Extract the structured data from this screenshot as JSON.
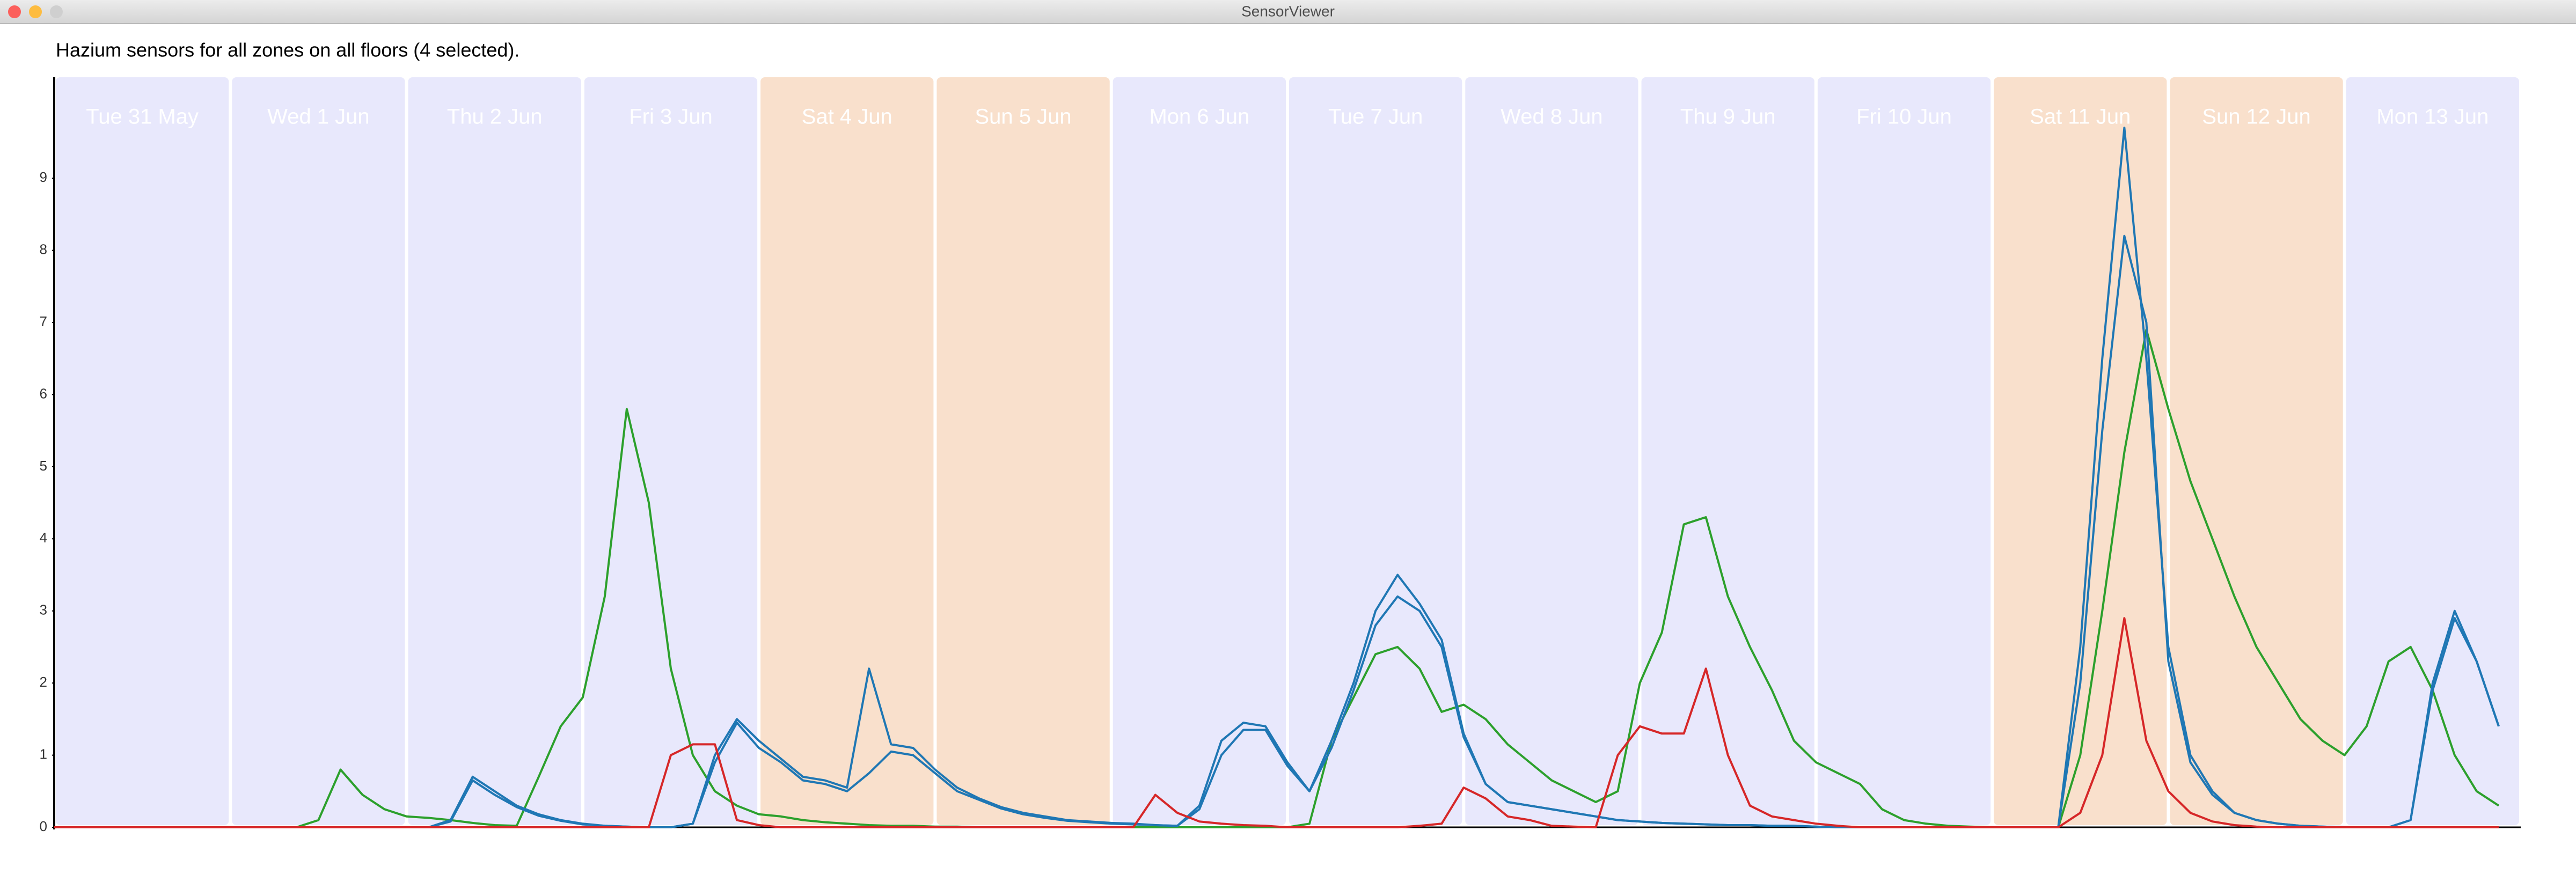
{
  "window": {
    "title": "SensorViewer"
  },
  "chart_data": {
    "type": "line",
    "title": "Hazium sensors for all zones on all floors (4 selected).",
    "categories": [
      "Tue 31 May",
      "Wed 1 Jun",
      "Thu 2 Jun",
      "Fri 3 Jun",
      "Sat 4 Jun",
      "Sun 5 Jun",
      "Mon 6 Jun",
      "Tue 7 Jun",
      "Wed 8 Jun",
      "Thu 9 Jun",
      "Fri 10 Jun",
      "Sat 11 Jun",
      "Sun 12 Jun",
      "Mon 13 Jun"
    ],
    "band_colors": [
      "#e8e8fc",
      "#e8e8fc",
      "#e8e8fc",
      "#e8e8fc",
      "#f9e0cc",
      "#f9e0cc",
      "#e8e8fc",
      "#e8e8fc",
      "#e8e8fc",
      "#e8e8fc",
      "#e8e8fc",
      "#f9e0cc",
      "#f9e0cc",
      "#e8e8fc"
    ],
    "ylim": [
      0,
      10.4
    ],
    "yticks": [
      0,
      1,
      2,
      3,
      4,
      5,
      6,
      7,
      8,
      9
    ],
    "series": [
      {
        "color": "#2ca02c",
        "values": [
          [
            0,
            0,
            0,
            0,
            0,
            0,
            0,
            0
          ],
          [
            0,
            0,
            0,
            0,
            0.1,
            0.8,
            0.45,
            0.25
          ],
          [
            0.15,
            0.13,
            0.1,
            0.06,
            0.03,
            0.02,
            0.7,
            1.4
          ],
          [
            1.8,
            3.2,
            5.8,
            4.5,
            2.2,
            1.0,
            0.5,
            0.3
          ],
          [
            0.18,
            0.15,
            0.1,
            0.07,
            0.05,
            0.03,
            0.02,
            0.02
          ],
          [
            0.01,
            0.01,
            0,
            0,
            0,
            0,
            0,
            0
          ],
          [
            0,
            0,
            0,
            0,
            0,
            0,
            0,
            0
          ],
          [
            0,
            0.05,
            1.2,
            1.8,
            2.4,
            2.5,
            2.2,
            1.6
          ],
          [
            1.7,
            1.5,
            1.15,
            0.9,
            0.65,
            0.5,
            0.35,
            0.5
          ],
          [
            2.0,
            2.7,
            4.2,
            4.3,
            3.2,
            2.5,
            1.9,
            1.2
          ],
          [
            0.9,
            0.75,
            0.6,
            0.25,
            0.1,
            0.05,
            0.02,
            0.01
          ],
          [
            0,
            0,
            0,
            0,
            1.0,
            3.0,
            5.2,
            6.9
          ],
          [
            5.8,
            4.8,
            4.0,
            3.2,
            2.5,
            2.0,
            1.5,
            1.2
          ],
          [
            1.0,
            1.4,
            2.3,
            2.5,
            1.9,
            1.0,
            0.5,
            0.3
          ]
        ]
      },
      {
        "color": "#1f77b4",
        "values": [
          [
            0,
            0,
            0,
            0,
            0,
            0,
            0,
            0
          ],
          [
            0,
            0,
            0,
            0,
            0,
            0,
            0,
            0
          ],
          [
            0,
            0,
            0.1,
            0.7,
            0.5,
            0.3,
            0.18,
            0.1
          ],
          [
            0.05,
            0.02,
            0.01,
            0,
            0,
            0.05,
            1.0,
            1.5
          ],
          [
            1.2,
            0.95,
            0.7,
            0.65,
            0.55,
            2.2,
            1.15,
            1.1
          ],
          [
            0.8,
            0.55,
            0.4,
            0.28,
            0.2,
            0.15,
            0.1,
            0.08
          ],
          [
            0.06,
            0.05,
            0.03,
            0.02,
            0.3,
            1.2,
            1.45,
            1.4
          ],
          [
            0.9,
            0.5,
            1.2,
            2.0,
            3.0,
            3.5,
            3.1,
            2.6
          ],
          [
            1.3,
            0.6,
            0.35,
            0.3,
            0.25,
            0.2,
            0.15,
            0.1
          ],
          [
            0.08,
            0.06,
            0.05,
            0.04,
            0.03,
            0.03,
            0.02,
            0.02
          ],
          [
            0.01,
            0,
            0,
            0,
            0,
            0,
            0,
            0
          ],
          [
            0,
            0,
            0,
            0,
            2.5,
            6.5,
            9.7,
            6.5
          ],
          [
            2.5,
            1.0,
            0.5,
            0.2,
            0.1,
            0.05,
            0.02,
            0.01
          ],
          [
            0,
            0,
            0,
            0.1,
            2.0,
            3.0,
            2.3,
            1.4
          ]
        ]
      },
      {
        "color": "#1f77b4",
        "values": [
          [
            0,
            0,
            0,
            0,
            0,
            0,
            0,
            0
          ],
          [
            0,
            0,
            0,
            0,
            0,
            0,
            0,
            0
          ],
          [
            0,
            0,
            0.08,
            0.65,
            0.45,
            0.28,
            0.16,
            0.09
          ],
          [
            0.04,
            0.02,
            0.01,
            0,
            0,
            0.05,
            0.9,
            1.45
          ],
          [
            1.1,
            0.9,
            0.65,
            0.6,
            0.5,
            0.75,
            1.05,
            1.0
          ],
          [
            0.75,
            0.5,
            0.38,
            0.26,
            0.18,
            0.13,
            0.09,
            0.07
          ],
          [
            0.05,
            0.04,
            0.03,
            0.02,
            0.25,
            1.0,
            1.35,
            1.35
          ],
          [
            0.85,
            0.5,
            1.1,
            1.9,
            2.8,
            3.2,
            3.0,
            2.5
          ],
          [
            1.25,
            0.6,
            0.35,
            0.3,
            0.25,
            0.2,
            0.15,
            0.1
          ],
          [
            0.08,
            0.06,
            0.05,
            0.04,
            0.03,
            0.03,
            0.02,
            0.02
          ],
          [
            0.01,
            0,
            0,
            0,
            0,
            0,
            0,
            0
          ],
          [
            0,
            0,
            0,
            0,
            2.0,
            5.5,
            8.2,
            7.0
          ],
          [
            2.3,
            0.9,
            0.45,
            0.2,
            0.1,
            0.05,
            0.02,
            0.01
          ],
          [
            0,
            0,
            0,
            0.1,
            1.9,
            2.9,
            2.3,
            1.4
          ]
        ]
      },
      {
        "color": "#d62728",
        "values": [
          [
            0,
            0,
            0,
            0,
            0,
            0,
            0,
            0
          ],
          [
            0,
            0,
            0,
            0,
            0,
            0,
            0,
            0
          ],
          [
            0,
            0,
            0,
            0,
            0,
            0,
            0,
            0
          ],
          [
            0,
            0,
            0,
            0,
            1.0,
            1.15,
            1.15,
            0.1
          ],
          [
            0.03,
            0,
            0,
            0,
            0,
            0,
            0,
            0
          ],
          [
            0,
            0,
            0,
            0,
            0,
            0,
            0,
            0
          ],
          [
            0,
            0,
            0.45,
            0.2,
            0.08,
            0.05,
            0.03,
            0.02
          ],
          [
            0,
            0,
            0,
            0,
            0,
            0,
            0.02,
            0.05
          ],
          [
            0.55,
            0.4,
            0.15,
            0.1,
            0.02,
            0.01,
            0,
            1.0
          ],
          [
            1.4,
            1.3,
            1.3,
            2.2,
            1.0,
            0.3,
            0.15,
            0.1
          ],
          [
            0.05,
            0.02,
            0,
            0,
            0,
            0,
            0,
            0
          ],
          [
            0,
            0,
            0,
            0,
            0.2,
            1.0,
            2.9,
            1.2
          ],
          [
            0.5,
            0.2,
            0.08,
            0.03,
            0.01,
            0,
            0,
            0
          ],
          [
            0,
            0,
            0,
            0,
            0,
            0,
            0,
            0
          ]
        ]
      }
    ]
  }
}
